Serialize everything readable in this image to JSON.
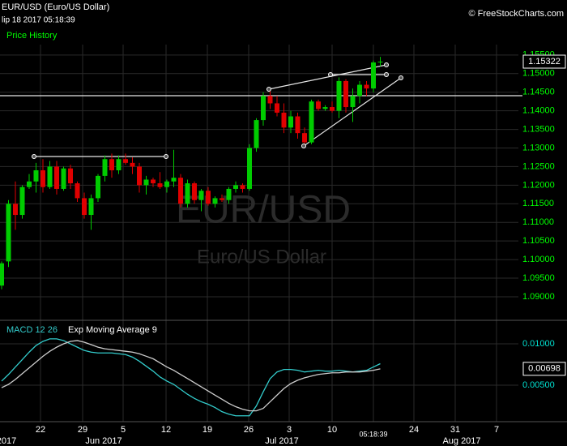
{
  "header": {
    "title": "EUR/USD (Euro/US Dollar)",
    "timestamp": "lip 18 2017 05:18:39",
    "copyright": "© FreeStockCharts.com",
    "panel_label": "Price History"
  },
  "watermark": {
    "symbol": "EUR/USD",
    "name": "Euro/US Dollar"
  },
  "x_labels": [
    "22",
    "29",
    "5",
    "12",
    "19",
    "26",
    "3",
    "10",
    "24",
    "31",
    "7"
  ],
  "period_labels": [
    "2017",
    "Jun 2017",
    "Jul 2017",
    "Aug 2017"
  ],
  "time_label": "05:18:39",
  "chart_data": [
    {
      "type": "candlestick",
      "up_color": "#00cc00",
      "down_color": "#e00000",
      "grid": true,
      "ylim": [
        1.0841,
        1.1578
      ],
      "yticks": [
        {
          "value": 1.09,
          "label": "1.09000"
        },
        {
          "value": 1.095,
          "label": "1.09500"
        },
        {
          "value": 1.1,
          "label": "1.10000"
        },
        {
          "value": 1.105,
          "label": "1.10500"
        },
        {
          "value": 1.11,
          "label": "1.11000"
        },
        {
          "value": 1.115,
          "label": "1.11500"
        },
        {
          "value": 1.12,
          "label": "1.12000"
        },
        {
          "value": 1.125,
          "label": "1.12500"
        },
        {
          "value": 1.13,
          "label": "1.13000"
        },
        {
          "value": 1.135,
          "label": "1.13500"
        },
        {
          "value": 1.14,
          "label": "1.14000"
        },
        {
          "value": 1.145,
          "label": "1.14500"
        },
        {
          "value": 1.15,
          "label": "1.15000"
        },
        {
          "value": 1.155,
          "label": "1.15500"
        }
      ],
      "last_value": 1.15322,
      "ohlc": [
        [
          1.093,
          1.0995,
          1.092,
          1.099
        ],
        [
          1.0995,
          1.116,
          1.098,
          1.115
        ],
        [
          1.115,
          1.121,
          1.108,
          1.112
        ],
        [
          1.112,
          1.12,
          1.111,
          1.1195
        ],
        [
          1.1195,
          1.123,
          1.119,
          1.121
        ],
        [
          1.121,
          1.126,
          1.118,
          1.124
        ],
        [
          1.124,
          1.127,
          1.118,
          1.1195
        ],
        [
          1.1195,
          1.1265,
          1.119,
          1.125
        ],
        [
          1.125,
          1.1265,
          1.1175,
          1.119
        ],
        [
          1.119,
          1.125,
          1.1185,
          1.1245
        ],
        [
          1.1245,
          1.1255,
          1.119,
          1.1205
        ],
        [
          1.1205,
          1.121,
          1.1155,
          1.1165
        ],
        [
          1.1165,
          1.118,
          1.111,
          1.112
        ],
        [
          1.112,
          1.1175,
          1.108,
          1.1165
        ],
        [
          1.1165,
          1.123,
          1.1155,
          1.1225
        ],
        [
          1.1225,
          1.128,
          1.121,
          1.127
        ],
        [
          1.127,
          1.1285,
          1.122,
          1.124
        ],
        [
          1.124,
          1.128,
          1.123,
          1.127
        ],
        [
          1.127,
          1.1285,
          1.1255,
          1.126
        ],
        [
          1.126,
          1.1275,
          1.123,
          1.125
        ],
        [
          1.125,
          1.126,
          1.118,
          1.12
        ],
        [
          1.12,
          1.1225,
          1.1175,
          1.1215
        ],
        [
          1.1215,
          1.122,
          1.1195,
          1.1205
        ],
        [
          1.1205,
          1.1235,
          1.119,
          1.1195
        ],
        [
          1.1195,
          1.1215,
          1.118,
          1.121
        ],
        [
          1.121,
          1.1295,
          1.1195,
          1.122
        ],
        [
          1.122,
          1.123,
          1.114,
          1.115
        ],
        [
          1.115,
          1.1215,
          1.114,
          1.1205
        ],
        [
          1.1205,
          1.121,
          1.115,
          1.116
        ],
        [
          1.116,
          1.119,
          1.113,
          1.1185
        ],
        [
          1.1185,
          1.1195,
          1.1145,
          1.115
        ],
        [
          1.115,
          1.117,
          1.114,
          1.1165
        ],
        [
          1.1165,
          1.1175,
          1.1155,
          1.116
        ],
        [
          1.116,
          1.1195,
          1.115,
          1.119
        ],
        [
          1.119,
          1.121,
          1.118,
          1.12
        ],
        [
          1.12,
          1.1205,
          1.118,
          1.119
        ],
        [
          1.119,
          1.131,
          1.1185,
          1.13
        ],
        [
          1.13,
          1.138,
          1.129,
          1.1375
        ],
        [
          1.1375,
          1.145,
          1.136,
          1.144
        ],
        [
          1.144,
          1.1455,
          1.1405,
          1.142
        ],
        [
          1.142,
          1.144,
          1.1385,
          1.1395
        ],
        [
          1.1395,
          1.142,
          1.134,
          1.1355
        ],
        [
          1.1355,
          1.14,
          1.134,
          1.1385
        ],
        [
          1.1385,
          1.1395,
          1.1325,
          1.134
        ],
        [
          1.134,
          1.1355,
          1.13,
          1.1315
        ],
        [
          1.1315,
          1.143,
          1.131,
          1.1425
        ],
        [
          1.1425,
          1.143,
          1.14,
          1.1405
        ],
        [
          1.1405,
          1.1415,
          1.14,
          1.141
        ],
        [
          1.141,
          1.1425,
          1.1395,
          1.14
        ],
        [
          1.14,
          1.149,
          1.138,
          1.148
        ],
        [
          1.148,
          1.1485,
          1.1395,
          1.141
        ],
        [
          1.141,
          1.146,
          1.137,
          1.144
        ],
        [
          1.144,
          1.148,
          1.142,
          1.147
        ],
        [
          1.147,
          1.148,
          1.144,
          1.146
        ],
        [
          1.146,
          1.1535,
          1.145,
          1.153
        ],
        [
          1.153,
          1.1545,
          1.152,
          1.15322
        ]
      ]
    },
    {
      "type": "line",
      "grid": true,
      "ylim": [
        0.00059,
        0.01265
      ],
      "yticks": [
        {
          "value": 0.005,
          "label": "0.00500"
        },
        {
          "value": 0.01,
          "label": "0.01000"
        }
      ],
      "last_value": 0.00698,
      "series": [
        {
          "name": "MACD 12 26",
          "color": "#33cccc",
          "values": [
            0.0055,
            0.0063,
            0.0072,
            0.0081,
            0.009,
            0.0098,
            0.0103,
            0.0106,
            0.0106,
            0.0104,
            0.01,
            0.0096,
            0.0092,
            0.009,
            0.0089,
            0.0089,
            0.0089,
            0.0088,
            0.0087,
            0.0084,
            0.0079,
            0.0073,
            0.0067,
            0.006,
            0.0055,
            0.0051,
            0.0045,
            0.0039,
            0.0034,
            0.003,
            0.0027,
            0.0023,
            0.0018,
            0.0015,
            0.0013,
            0.0013,
            0.0013,
            0.0025,
            0.0042,
            0.0058,
            0.0066,
            0.0069,
            0.0069,
            0.0068,
            0.0066,
            0.0067,
            0.0068,
            0.0067,
            0.0067,
            0.0068,
            0.0067,
            0.0066,
            0.0067,
            0.0068,
            0.0072,
            0.0076
          ]
        },
        {
          "name": "Exp Moving Average 9",
          "color": "#cccccc",
          "values": [
            0.0047,
            0.0051,
            0.0057,
            0.0064,
            0.0071,
            0.0078,
            0.0085,
            0.0091,
            0.0096,
            0.01,
            0.0103,
            0.0104,
            0.0102,
            0.0099,
            0.0096,
            0.0094,
            0.0093,
            0.0092,
            0.0091,
            0.009,
            0.0088,
            0.0085,
            0.0082,
            0.0077,
            0.0072,
            0.0068,
            0.0063,
            0.0058,
            0.0053,
            0.0048,
            0.0043,
            0.0038,
            0.0033,
            0.0028,
            0.0024,
            0.0021,
            0.0019,
            0.0019,
            0.0022,
            0.003,
            0.0038,
            0.0046,
            0.0052,
            0.0056,
            0.0059,
            0.0061,
            0.0063,
            0.0064,
            0.0065,
            0.0065,
            0.0066,
            0.0066,
            0.0066,
            0.0067,
            0.0068,
            0.00698
          ]
        }
      ]
    }
  ]
}
